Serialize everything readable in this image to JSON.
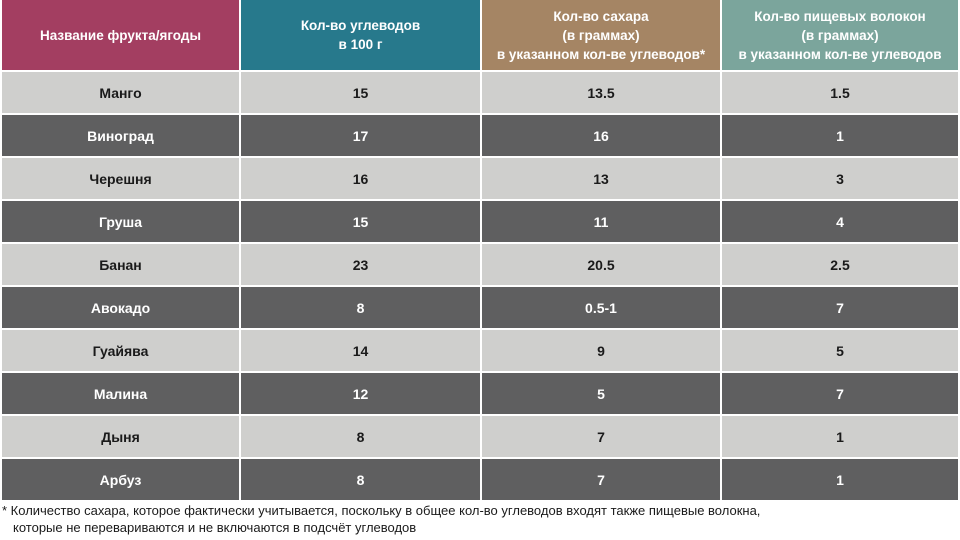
{
  "table": {
    "headers": [
      [
        "Название фрукта/ягоды"
      ],
      [
        "Кол-во углеводов",
        "в 100 г"
      ],
      [
        "Кол-во сахара",
        "(в граммах)",
        "в указанном кол-ве углеводов*"
      ],
      [
        "Кол-во пищевых волокон",
        "(в граммах)",
        "в указанном кол-ве углеводов"
      ]
    ],
    "rows": [
      [
        "Манго",
        "15",
        "13.5",
        "1.5"
      ],
      [
        "Виноград",
        "17",
        "16",
        "1"
      ],
      [
        "Черешня",
        "16",
        "13",
        "3"
      ],
      [
        "Груша",
        "15",
        "11",
        "4"
      ],
      [
        "Банан",
        "23",
        "20.5",
        "2.5"
      ],
      [
        "Авокадо",
        "8",
        "0.5-1",
        "7"
      ],
      [
        "Гуайява",
        "14",
        "9",
        "5"
      ],
      [
        "Малина",
        "12",
        "5",
        "7"
      ],
      [
        "Дыня",
        "8",
        "7",
        "1"
      ],
      [
        "Арбуз",
        "8",
        "7",
        "1"
      ]
    ]
  },
  "footnote": {
    "line1": "* Количество сахара, которое фактически учитывается, поскольку в общее кол-во углеводов входят также пищевые волокна,",
    "line2": "которые не перевариваются и не включаются в подсчёт углеводов"
  },
  "colors": {
    "header_name": "#a33e61",
    "header_carbs": "#27798c",
    "header_sugar": "#a58564",
    "header_fiber": "#7ba59c",
    "row_light": "#cfcfcd",
    "row_dark": "#5f5f60"
  }
}
